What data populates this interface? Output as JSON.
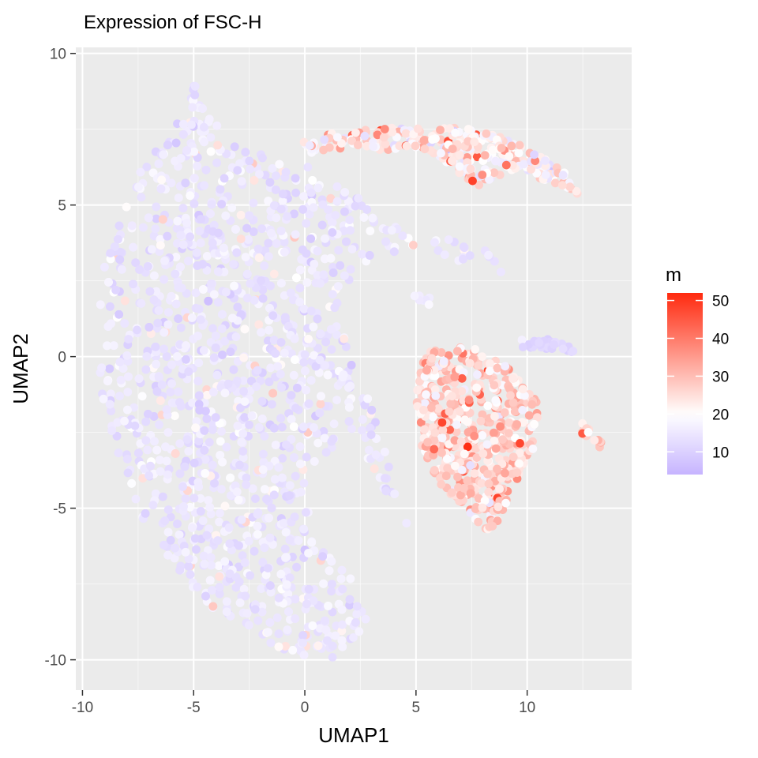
{
  "chart_data": {
    "type": "scatter",
    "title": "Expression of FSC-H",
    "xlabel": "UMAP1",
    "ylabel": "UMAP2",
    "xlim": [
      -10.3,
      14.7
    ],
    "ylim": [
      -11.0,
      10.2
    ],
    "x_ticks": [
      -10,
      -5,
      0,
      5,
      10
    ],
    "x_tick_labels": [
      "-10",
      "-5",
      "0",
      "5",
      "10"
    ],
    "y_ticks": [
      10,
      5,
      0,
      -5,
      -10
    ],
    "y_tick_labels": [
      "10",
      "5",
      "0",
      "-5",
      "-10"
    ],
    "grid": true,
    "panel_background": "#ebebeb",
    "grid_color": "#ffffff",
    "legend": {
      "title": "m",
      "position": "right",
      "range": [
        4,
        52
      ],
      "ticks": [
        50,
        40,
        30,
        20,
        10
      ],
      "tick_labels": [
        "50",
        "40",
        "30",
        "20",
        "10"
      ],
      "color_low": "#c6b4ff",
      "color_mid": "#ffffff",
      "color_high": "#ff2a0f",
      "midpoint": 20
    },
    "clusters": [
      {
        "shape": "main-crescent",
        "outline": [
          [
            -4.9,
            9.3
          ],
          [
            -4.4,
            8.0
          ],
          [
            -3.6,
            7.4
          ],
          [
            -2.0,
            6.8
          ],
          [
            -0.5,
            6.4
          ],
          [
            0.8,
            6.2
          ],
          [
            1.8,
            5.6
          ],
          [
            2.8,
            5.0
          ],
          [
            3.8,
            4.5
          ],
          [
            5.5,
            4.0
          ],
          [
            7.5,
            3.8
          ],
          [
            9.2,
            3.0
          ],
          [
            9.5,
            2.6
          ],
          [
            7.5,
            3.1
          ],
          [
            5.5,
            3.3
          ],
          [
            3.5,
            3.4
          ],
          [
            2.5,
            3.0
          ],
          [
            1.5,
            2.0
          ],
          [
            1.8,
            0.8
          ],
          [
            2.5,
            -0.8
          ],
          [
            3.5,
            -2.5
          ],
          [
            4.7,
            -5.7
          ],
          [
            3.8,
            -4.8
          ],
          [
            2.5,
            -3.6
          ],
          [
            1.6,
            -2.8
          ],
          [
            1.0,
            -3.2
          ],
          [
            0.0,
            -4.6
          ],
          [
            0.6,
            -6.2
          ],
          [
            2.0,
            -7.2
          ],
          [
            2.8,
            -8.6
          ],
          [
            2.2,
            -9.6
          ],
          [
            1.2,
            -10.0
          ],
          [
            -0.5,
            -9.8
          ],
          [
            -2.5,
            -9.2
          ],
          [
            -5.0,
            -7.8
          ],
          [
            -7.0,
            -5.8
          ],
          [
            -8.3,
            -3.6
          ],
          [
            -9.2,
            -1.0
          ],
          [
            -9.2,
            2.5
          ],
          [
            -8.3,
            4.8
          ],
          [
            -7.3,
            6.3
          ],
          [
            -6.0,
            7.3
          ]
        ],
        "count": 2900,
        "mean_value": 14.5,
        "spread": 4.5
      },
      {
        "shape": "upper-arc",
        "outline": [
          [
            -0.3,
            7.2
          ],
          [
            1.5,
            7.4
          ],
          [
            3.0,
            7.5
          ],
          [
            4.5,
            7.6
          ],
          [
            6.0,
            7.6
          ],
          [
            7.5,
            7.5
          ],
          [
            9.0,
            7.2
          ],
          [
            10.5,
            6.7
          ],
          [
            11.8,
            6.0
          ],
          [
            12.5,
            5.3
          ],
          [
            11.6,
            5.6
          ],
          [
            10.5,
            5.9
          ],
          [
            9.5,
            6.2
          ],
          [
            8.5,
            5.9
          ],
          [
            7.8,
            5.6
          ],
          [
            7.2,
            5.8
          ],
          [
            6.8,
            6.2
          ],
          [
            6.0,
            6.6
          ],
          [
            5.0,
            6.9
          ],
          [
            3.5,
            6.8
          ],
          [
            2.0,
            6.9
          ],
          [
            0.3,
            6.7
          ]
        ],
        "count": 330,
        "mean_value": 22,
        "spread": 10
      },
      {
        "shape": "lower-right-oval",
        "outline": [
          [
            5.6,
            0.2
          ],
          [
            7.0,
            0.4
          ],
          [
            8.3,
            0.1
          ],
          [
            9.5,
            -0.6
          ],
          [
            10.6,
            -1.6
          ],
          [
            10.3,
            -3.0
          ],
          [
            9.5,
            -4.2
          ],
          [
            8.7,
            -5.4
          ],
          [
            8.2,
            -5.8
          ],
          [
            7.4,
            -5.2
          ],
          [
            6.2,
            -4.3
          ],
          [
            5.3,
            -3.2
          ],
          [
            5.0,
            -1.8
          ],
          [
            5.1,
            -0.5
          ]
        ],
        "count": 560,
        "mean_value": 27,
        "spread": 8
      },
      {
        "shape": "small-band-right",
        "outline": [
          [
            9.7,
            0.6
          ],
          [
            10.8,
            0.6
          ],
          [
            11.8,
            0.4
          ],
          [
            12.4,
            0.1
          ],
          [
            11.5,
            0.2
          ],
          [
            10.5,
            0.3
          ],
          [
            9.7,
            0.3
          ]
        ],
        "count": 35,
        "mean_value": 11,
        "spread": 2
      },
      {
        "shape": "far-right-strip",
        "outline": [
          [
            12.2,
            -2.0
          ],
          [
            13.0,
            -2.5
          ],
          [
            13.6,
            -3.1
          ],
          [
            13.2,
            -3.0
          ],
          [
            12.4,
            -2.5
          ]
        ],
        "count": 18,
        "mean_value": 27,
        "spread": 5
      },
      {
        "shape": "small-dot-group",
        "outline": [
          [
            4.9,
            2.0
          ],
          [
            5.8,
            2.1
          ],
          [
            5.6,
            1.7
          ],
          [
            4.9,
            1.8
          ]
        ],
        "count": 8,
        "mean_value": 16,
        "spread": 2
      }
    ]
  }
}
